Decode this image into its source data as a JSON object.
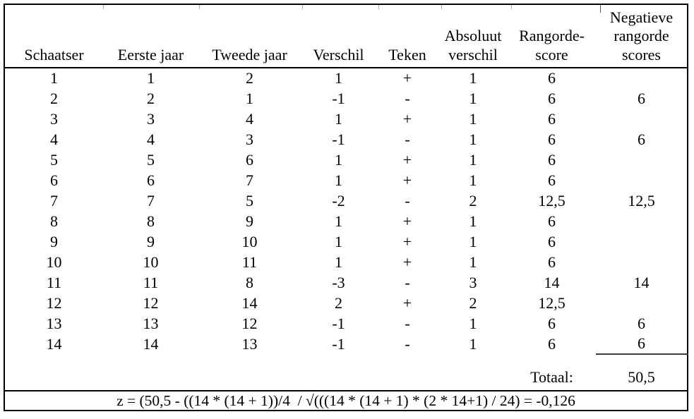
{
  "table": {
    "column_headers": [
      "Schaatser",
      "Eerste jaar",
      "Tweede jaar",
      "Verschil",
      "Teken",
      "Absoluut\nverschil",
      "Rangorde-\nscore",
      "Negatieve\nrangorde\nscores"
    ],
    "rows": [
      [
        "1",
        "1",
        "2",
        "1",
        "+",
        "1",
        "6",
        ""
      ],
      [
        "2",
        "2",
        "1",
        "-1",
        "-",
        "1",
        "6",
        "6"
      ],
      [
        "3",
        "3",
        "4",
        "1",
        "+",
        "1",
        "6",
        ""
      ],
      [
        "4",
        "4",
        "3",
        "-1",
        "-",
        "1",
        "6",
        "6"
      ],
      [
        "5",
        "5",
        "6",
        "1",
        "+",
        "1",
        "6",
        ""
      ],
      [
        "6",
        "6",
        "7",
        "1",
        "+",
        "1",
        "6",
        ""
      ],
      [
        "7",
        "7",
        "5",
        "-2",
        "-",
        "2",
        "12,5",
        "12,5"
      ],
      [
        "8",
        "8",
        "9",
        "1",
        "+",
        "1",
        "6",
        ""
      ],
      [
        "9",
        "9",
        "10",
        "1",
        "+",
        "1",
        "6",
        ""
      ],
      [
        "10",
        "10",
        "11",
        "1",
        "+",
        "1",
        "6",
        ""
      ],
      [
        "11",
        "11",
        "8",
        "-3",
        "-",
        "3",
        "14",
        "14"
      ],
      [
        "12",
        "12",
        "14",
        "2",
        "+",
        "2",
        "12,5",
        ""
      ],
      [
        "13",
        "13",
        "12",
        "-1",
        "-",
        "1",
        "6",
        "6"
      ],
      [
        "14",
        "14",
        "13",
        "-1",
        "-",
        "1",
        "6",
        "6"
      ]
    ],
    "total": {
      "label": "Totaal:",
      "value": "50,5"
    },
    "formula": "z = (50,5 - ((14 * (14 + 1))/4  / √(((14 * (14 + 1) * (2 * 14+1) / 24) = -0,126"
  },
  "colors": {
    "text": "#000000",
    "border": "#000000",
    "background": "#ffffff"
  }
}
